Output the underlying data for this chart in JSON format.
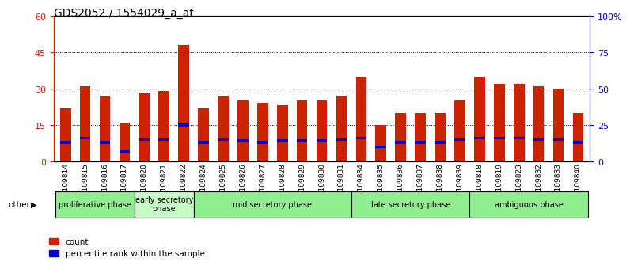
{
  "title": "GDS2052 / 1554029_a_at",
  "samples": [
    "GSM109814",
    "GSM109815",
    "GSM109816",
    "GSM109817",
    "GSM109820",
    "GSM109821",
    "GSM109822",
    "GSM109824",
    "GSM109825",
    "GSM109826",
    "GSM109827",
    "GSM109828",
    "GSM109829",
    "GSM109830",
    "GSM109831",
    "GSM109834",
    "GSM109835",
    "GSM109836",
    "GSM109837",
    "GSM109838",
    "GSM109839",
    "GSM109818",
    "GSM109819",
    "GSM109823",
    "GSM109832",
    "GSM109833",
    "GSM109840"
  ],
  "count_values": [
    22,
    31,
    27,
    16,
    28,
    29,
    48,
    22,
    27,
    25,
    24,
    23,
    25,
    25,
    27,
    35,
    15,
    20,
    20,
    20,
    25,
    35,
    32,
    32,
    31,
    30,
    20
  ],
  "percentile_values": [
    13,
    16,
    13,
    7,
    15,
    15,
    25,
    13,
    15,
    14,
    13,
    14,
    14,
    14,
    15,
    16,
    10,
    13,
    13,
    13,
    15,
    16,
    16,
    16,
    15,
    15,
    13
  ],
  "phases": [
    {
      "label": "proliferative phase",
      "start": 0,
      "end": 4,
      "color": "#90EE90"
    },
    {
      "label": "early secretory\nphase",
      "start": 4,
      "end": 7,
      "color": "#c8fac8"
    },
    {
      "label": "mid secretory phase",
      "start": 7,
      "end": 15,
      "color": "#90EE90"
    },
    {
      "label": "late secretory phase",
      "start": 15,
      "end": 21,
      "color": "#90EE90"
    },
    {
      "label": "ambiguous phase",
      "start": 21,
      "end": 27,
      "color": "#90EE90"
    }
  ],
  "ylim_left": [
    0,
    60
  ],
  "ylim_right": [
    0,
    100
  ],
  "yticks_left": [
    0,
    15,
    30,
    45,
    60
  ],
  "yticks_right": [
    0,
    25,
    50,
    75,
    100
  ],
  "ytick_right_labels": [
    "0",
    "25",
    "50",
    "75",
    "100%"
  ],
  "bar_color": "#CC2200",
  "marker_color": "#0000CC",
  "bg_color": "#d3d3d3",
  "plot_bg": "#ffffff",
  "left_axis_color": "#CC2200",
  "right_axis_color": "#0000CC"
}
